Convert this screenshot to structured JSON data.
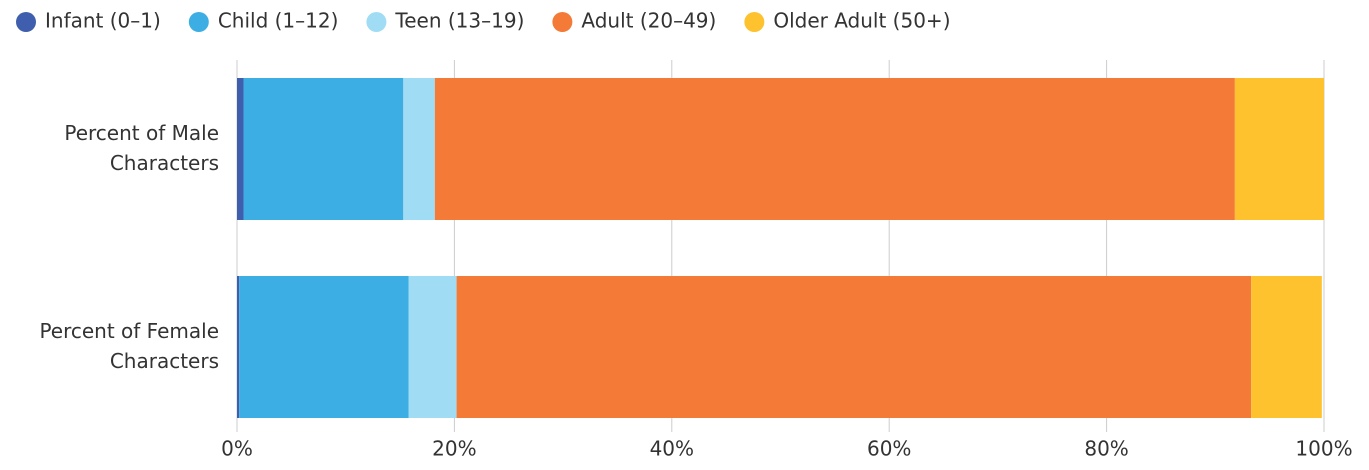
{
  "chart_data": {
    "type": "stacked-barh",
    "categories": [
      "Percent of Male Characters",
      "Percent of Female Characters"
    ],
    "series": [
      {
        "name": "Infant (0–1)",
        "color": "#3f5fae",
        "values": [
          0.6,
          0.2
        ]
      },
      {
        "name": "Child (1–12)",
        "color": "#3daee3",
        "values": [
          14.7,
          15.6
        ]
      },
      {
        "name": "Teen (13–19)",
        "color": "#a1dcf5",
        "values": [
          2.9,
          4.4
        ]
      },
      {
        "name": "Adult (20–49)",
        "color": "#f47a38",
        "values": [
          73.6,
          73.1
        ]
      },
      {
        "name": "Older Adult (50+)",
        "color": "#fdc22e",
        "values": [
          8.2,
          6.5
        ]
      }
    ],
    "xlim": [
      0,
      100
    ],
    "xticks": [
      {
        "value": 0,
        "label": "0%"
      },
      {
        "value": 20,
        "label": "20%"
      },
      {
        "value": 40,
        "label": "40%"
      },
      {
        "value": 60,
        "label": "60%"
      },
      {
        "value": 80,
        "label": "80%"
      },
      {
        "value": 100,
        "label": "100%"
      }
    ],
    "grid": true,
    "legend": "top"
  }
}
